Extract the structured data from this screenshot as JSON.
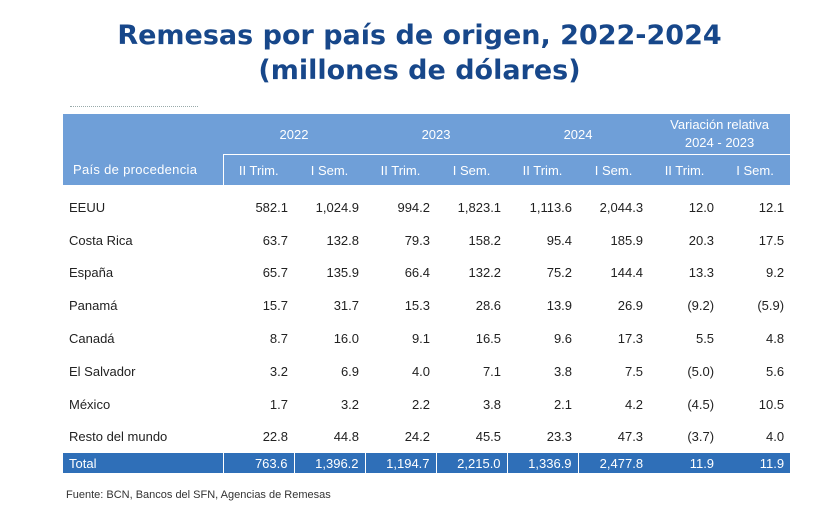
{
  "title_line1": "Remesas por país de origen, 2022-2024",
  "title_line2": "(millones de dólares)",
  "header": {
    "country_label": "País de procedencia",
    "years": [
      "2022",
      "2023",
      "2024"
    ],
    "variation_line1": "Variación relativa",
    "variation_line2": "2024 - 2023",
    "subheaders": [
      "II Trim.",
      "I Sem.",
      "II Trim.",
      "I Sem.",
      "II Trim.",
      "I Sem.",
      "II Trim.",
      "I Sem."
    ]
  },
  "rows": [
    {
      "country": "EEUU",
      "values": [
        "582.1",
        "1,024.9",
        "994.2",
        "1,823.1",
        "1,113.6",
        "2,044.3",
        "12.0",
        "12.1"
      ]
    },
    {
      "country": "Costa Rica",
      "values": [
        "63.7",
        "132.8",
        "79.3",
        "158.2",
        "95.4",
        "185.9",
        "20.3",
        "17.5"
      ]
    },
    {
      "country": "España",
      "values": [
        "65.7",
        "135.9",
        "66.4",
        "132.2",
        "75.2",
        "144.4",
        "13.3",
        "9.2"
      ]
    },
    {
      "country": "Panamá",
      "values": [
        "15.7",
        "31.7",
        "15.3",
        "28.6",
        "13.9",
        "26.9",
        "(9.2)",
        "(5.9)"
      ]
    },
    {
      "country": "Canadá",
      "values": [
        "8.7",
        "16.0",
        "9.1",
        "16.5",
        "9.6",
        "17.3",
        "5.5",
        "4.8"
      ]
    },
    {
      "country": "El Salvador",
      "values": [
        "3.2",
        "6.9",
        "4.0",
        "7.1",
        "3.8",
        "7.5",
        "(5.0)",
        "5.6"
      ]
    },
    {
      "country": "México",
      "values": [
        "1.7",
        "3.2",
        "2.2",
        "3.8",
        "2.1",
        "4.2",
        "(4.5)",
        "10.5"
      ]
    },
    {
      "country": "Resto del mundo",
      "values": [
        "22.8",
        "44.8",
        "24.2",
        "45.5",
        "23.3",
        "47.3",
        "(3.7)",
        "4.0"
      ]
    }
  ],
  "total": {
    "label": "Total",
    "values": [
      "763.6",
      "1,396.2",
      "1,194.7",
      "2,215.0",
      "1,336.9",
      "2,477.8",
      "11.9",
      "11.9"
    ]
  },
  "source": "Fuente: BCN, Bancos del SFN, Agencias de Remesas",
  "colors": {
    "title": "#17478a",
    "header_bg": "#6f9fd8",
    "total_bg": "#2f6fb8"
  }
}
